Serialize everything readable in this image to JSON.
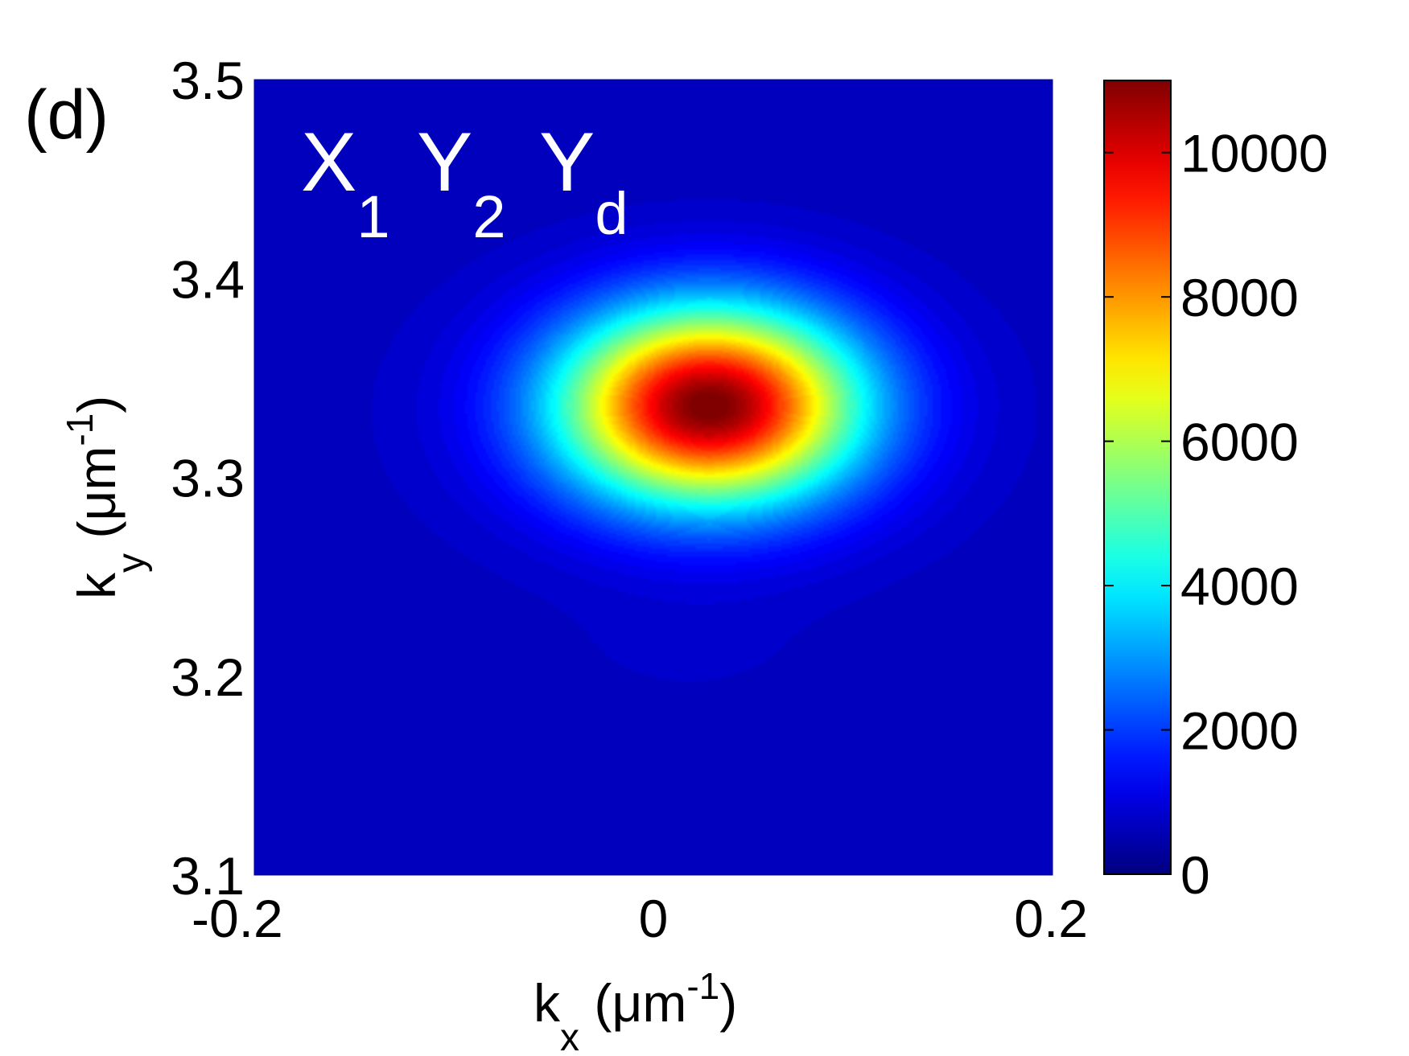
{
  "panel_label": "(d)",
  "chart_data": {
    "type": "heatmap",
    "title": "",
    "annotation": {
      "parts": [
        {
          "main": "X",
          "sub": "1"
        },
        {
          "main": "Y",
          "sub": "2"
        },
        {
          "main": "Y",
          "sub": "d"
        }
      ],
      "color": "#ffffff"
    },
    "xlabel": {
      "main": "k",
      "sub": "x",
      "rest": " (μm",
      "sup": "-1",
      "close": ")"
    },
    "ylabel": {
      "main": "k",
      "sub": "y",
      "rest": " (μm",
      "sup": "-1",
      "close": ")"
    },
    "xlim": [
      -0.2,
      0.2
    ],
    "ylim": [
      3.1,
      3.5
    ],
    "xticks": [
      {
        "value": -0.2,
        "label": "-0.2"
      },
      {
        "value": 0,
        "label": "0"
      },
      {
        "value": 0.2,
        "label": "0.2"
      }
    ],
    "yticks": [
      {
        "value": 3.1,
        "label": "3.1"
      },
      {
        "value": 3.2,
        "label": "3.2"
      },
      {
        "value": 3.3,
        "label": "3.3"
      },
      {
        "value": 3.4,
        "label": "3.4"
      },
      {
        "value": 3.5,
        "label": "3.5"
      }
    ],
    "colormap": "jet",
    "clim": [
      0,
      11000
    ],
    "colorbar": {
      "ticks": [
        {
          "value": 0,
          "label": "0"
        },
        {
          "value": 2000,
          "label": "2000"
        },
        {
          "value": 4000,
          "label": "4000"
        },
        {
          "value": 6000,
          "label": "6000"
        },
        {
          "value": 8000,
          "label": "8000"
        },
        {
          "value": 10000,
          "label": "10000"
        }
      ]
    },
    "intensity_model": {
      "peak": {
        "kx": 0.028,
        "ky": 3.336,
        "value": 11000
      },
      "sigma_kx": 0.052,
      "sigma_ky": 0.034,
      "halo": {
        "kx": 0.015,
        "ky": 3.325,
        "value": 220,
        "sigma_kx": 0.14,
        "sigma_ky": 0.075
      },
      "tail": {
        "kx": 0.018,
        "ky": 3.213,
        "value": 150,
        "sigma_kx": 0.045,
        "sigma_ky": 0.022
      }
    }
  }
}
